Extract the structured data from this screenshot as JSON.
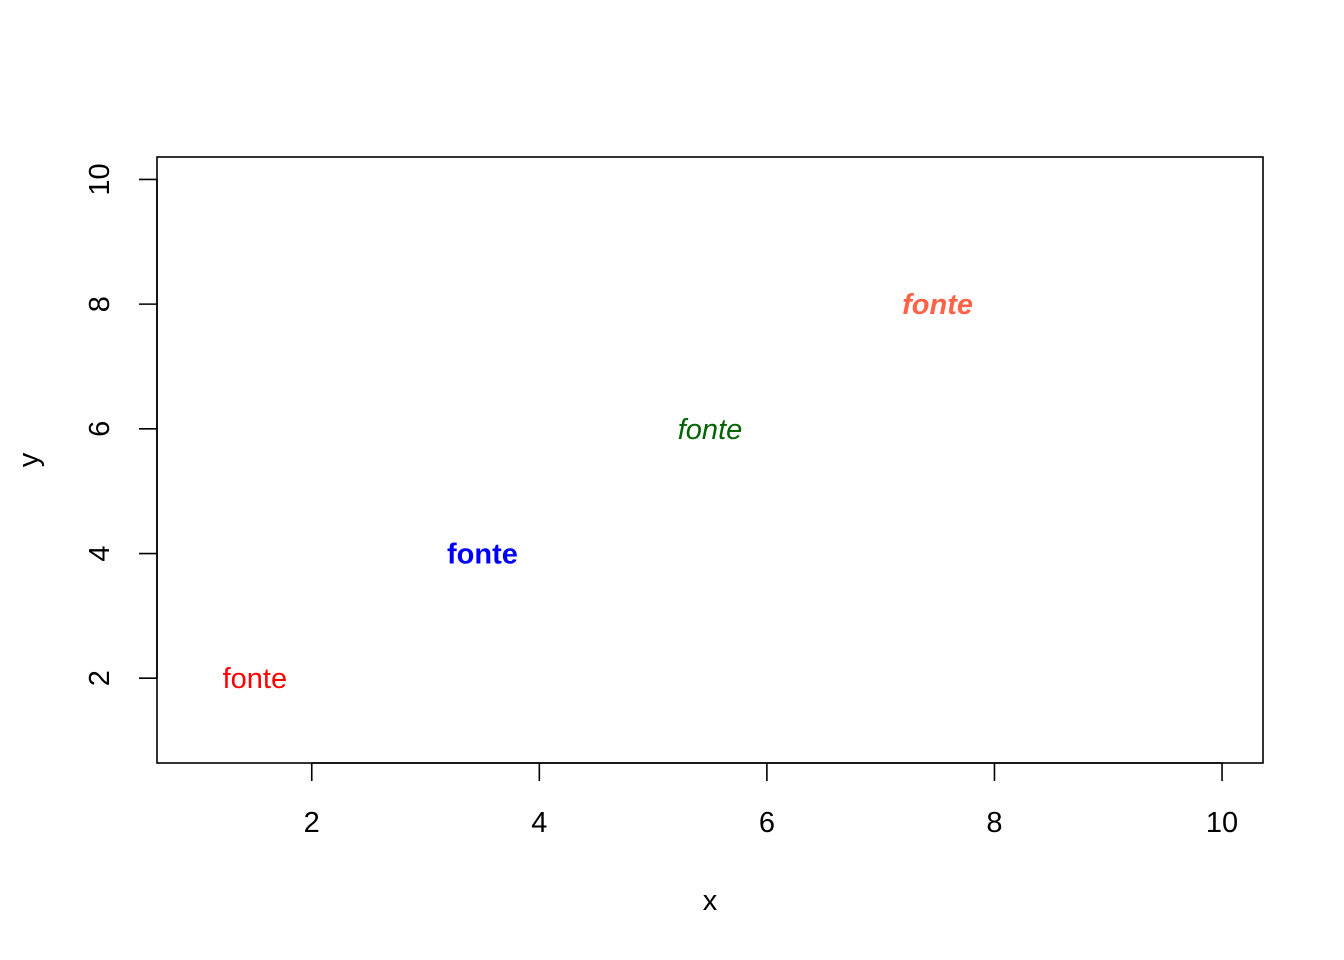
{
  "chart_data": {
    "type": "scatter",
    "title": "",
    "xlabel": "x",
    "ylabel": "y",
    "xlim": [
      0.64,
      10.36
    ],
    "ylim": [
      0.64,
      10.36
    ],
    "x_ticks": [
      2,
      4,
      6,
      8,
      10
    ],
    "y_ticks": [
      2,
      4,
      6,
      8,
      10
    ],
    "grid": false,
    "legend": "none",
    "points": [
      {
        "x": 1.5,
        "y": 2,
        "label": "fonte",
        "color": "#ff0000",
        "font_weight": "normal",
        "font_style": "normal"
      },
      {
        "x": 3.5,
        "y": 4,
        "label": "fonte",
        "color": "#0000ff",
        "font_weight": "bold",
        "font_style": "normal"
      },
      {
        "x": 5.5,
        "y": 6,
        "label": "fonte",
        "color": "#006400",
        "font_weight": "normal",
        "font_style": "italic"
      },
      {
        "x": 7.5,
        "y": 8,
        "label": "fonte",
        "color": "#ff6347",
        "font_weight": "bold",
        "font_style": "italic"
      }
    ]
  }
}
